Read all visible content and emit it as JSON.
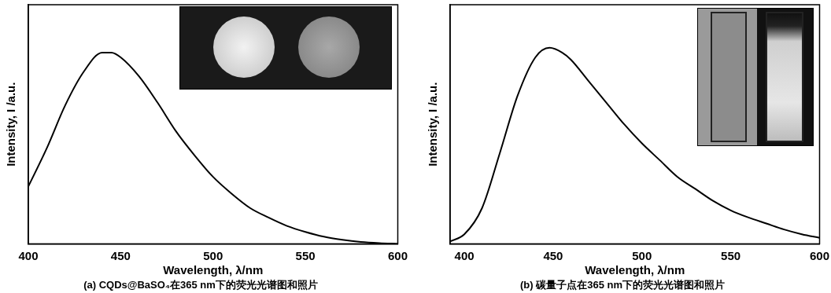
{
  "chart_data": [
    {
      "type": "line",
      "title": "(a) CQDs@BaSO₄在365 nm下的荧光光谱图和照片",
      "xlabel": "Wavelength, λ/nm",
      "ylabel": "Intensity, I /a.u.",
      "x": [
        400,
        410,
        420,
        430,
        440,
        445,
        450,
        460,
        470,
        480,
        490,
        500,
        510,
        520,
        530,
        540,
        550,
        560,
        570,
        580,
        590,
        600
      ],
      "values": [
        0.24,
        0.4,
        0.58,
        0.72,
        0.8,
        0.8,
        0.78,
        0.7,
        0.59,
        0.47,
        0.37,
        0.28,
        0.21,
        0.15,
        0.11,
        0.075,
        0.05,
        0.03,
        0.017,
        0.008,
        0.003,
        0.0
      ],
      "color": "#000000",
      "xlim": [
        400,
        600
      ],
      "xticks": [
        400,
        450,
        500,
        550,
        600
      ],
      "ylim": [
        0,
        1
      ],
      "grid": false,
      "tick_labels": "x"
    },
    {
      "type": "line",
      "title": "(b) 碳量子点在365 nm下的荧光光谱图和照片",
      "xlabel": "Wavelength, λ/nm",
      "ylabel": "Intensity, I /a.u.",
      "x": [
        392,
        400,
        410,
        420,
        430,
        440,
        448,
        455,
        460,
        470,
        480,
        490,
        500,
        510,
        520,
        530,
        540,
        550,
        560,
        570,
        580,
        590,
        600
      ],
      "values": [
        0.01,
        0.04,
        0.15,
        0.38,
        0.62,
        0.78,
        0.82,
        0.8,
        0.77,
        0.68,
        0.59,
        0.5,
        0.42,
        0.35,
        0.28,
        0.23,
        0.18,
        0.14,
        0.11,
        0.085,
        0.06,
        0.04,
        0.025
      ],
      "color": "#000000",
      "xlim": [
        392,
        600
      ],
      "xticks": [
        400,
        450,
        500,
        550,
        600
      ],
      "ylim": [
        0,
        1
      ],
      "grid": false,
      "tick_labels": "x"
    }
  ]
}
